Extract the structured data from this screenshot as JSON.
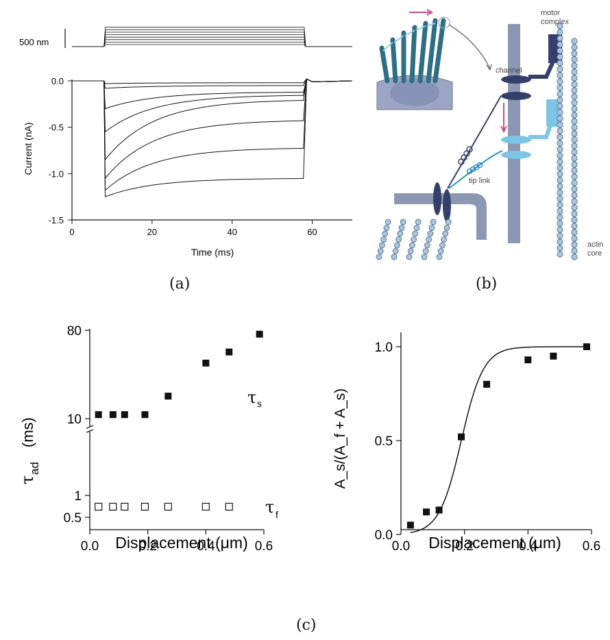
{
  "captions": {
    "a": "(a)",
    "b": "(b)",
    "c": "(c)"
  },
  "panel_a": {
    "scale_bar_label": "500 nm",
    "chart_data": {
      "type": "line",
      "xlabel": "Time (ms)",
      "ylabel": "Current (nA)",
      "xlim": [
        0,
        70
      ],
      "ylim": [
        -1.5,
        0.0
      ],
      "x_ticks": [
        "0",
        "20",
        "40",
        "60"
      ],
      "y_ticks": [
        "0.0",
        "-0.5",
        "-1.0",
        "-1.5"
      ],
      "stimulus": {
        "on_ms": 8,
        "off_ms": 58,
        "n_steps": 8
      },
      "series": [
        {
          "peak": -0.03,
          "end": -0.02
        },
        {
          "peak": -0.08,
          "end": -0.05
        },
        {
          "peak": -0.3,
          "end": -0.12
        },
        {
          "peak": -0.55,
          "end": -0.15
        },
        {
          "peak": -0.85,
          "end": -0.2
        },
        {
          "peak": -1.05,
          "end": -0.42
        },
        {
          "peak": -1.18,
          "end": -0.72
        },
        {
          "peak": -1.25,
          "end": -1.05
        }
      ]
    }
  },
  "panel_b": {
    "labels": {
      "motor": "motor",
      "complex": "complex",
      "channel": "channel",
      "tip_link": "tip link",
      "actin": "actin",
      "core": "core"
    },
    "colors": {
      "stalk": "#8b97b3",
      "dark": "#34406b",
      "light": "#7cc5e6",
      "arrow": "#c64b8c",
      "bead": "#a8c4df"
    }
  },
  "panel_c_left": {
    "chart_data": {
      "type": "scatter",
      "xlabel": "Displacement (μm)",
      "ylabel_main": "τ",
      "ylabel_sub": "ad",
      "ylabel_unit": "(ms)",
      "xlim": [
        0,
        0.6
      ],
      "y_scale": "log (broken axis)",
      "x_ticks": [
        "0.0",
        "0.2",
        "0.4",
        "0.6"
      ],
      "y_ticks": [
        "0.5",
        "1",
        "10",
        "80"
      ],
      "series": [
        {
          "name_main": "τ",
          "name_sub": "s",
          "marker": "filled square",
          "x": [
            0.03,
            0.08,
            0.12,
            0.19,
            0.27,
            0.4,
            0.48,
            0.585
          ],
          "y": [
            11,
            11,
            11,
            11,
            17,
            37,
            48,
            73
          ]
        },
        {
          "name_main": "τ",
          "name_sub": "f",
          "marker": "open square",
          "x": [
            0.03,
            0.08,
            0.12,
            0.19,
            0.27,
            0.4,
            0.48
          ],
          "y": [
            0.7,
            0.7,
            0.7,
            0.7,
            0.7,
            0.7,
            0.7
          ]
        }
      ]
    }
  },
  "panel_c_right": {
    "chart_data": {
      "type": "scatter",
      "xlabel": "Displacement (μm)",
      "ylabel": "A_s/(A_f + A_s)",
      "xlim": [
        0,
        0.6
      ],
      "ylim": [
        0,
        1.05
      ],
      "x_ticks": [
        "0.0",
        "0.2",
        "0.4",
        "0.6"
      ],
      "y_ticks": [
        "0.0",
        "0.5",
        "1.0"
      ],
      "series": [
        {
          "marker": "filled square",
          "x": [
            0.03,
            0.08,
            0.12,
            0.19,
            0.27,
            0.4,
            0.48,
            0.585
          ],
          "y": [
            0.05,
            0.12,
            0.13,
            0.52,
            0.8,
            0.93,
            0.95,
            1.0
          ]
        }
      ],
      "fit": {
        "type": "boltzmann",
        "x0": 0.19,
        "slope": 0.035
      }
    }
  }
}
